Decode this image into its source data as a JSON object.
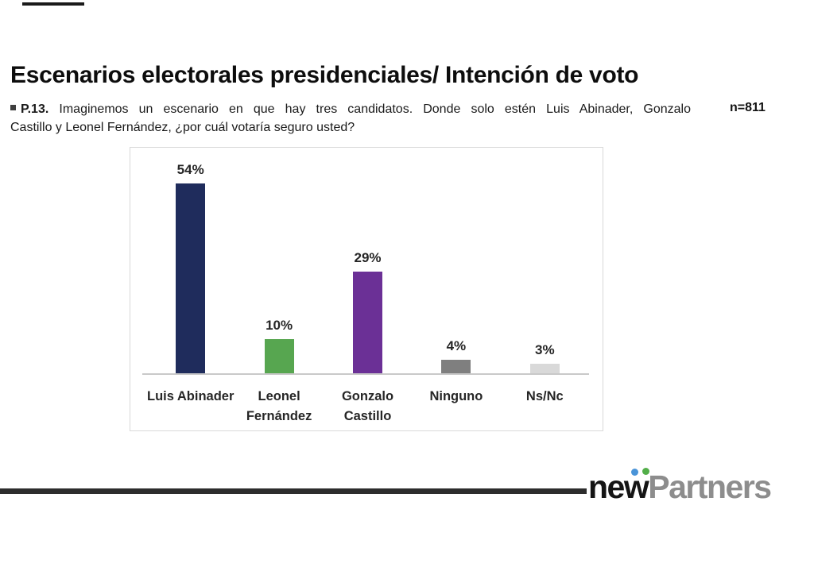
{
  "slide": {
    "title": "Escenarios electorales presidenciales/ Intención de voto",
    "question": {
      "bullet": "",
      "label": "P.13.",
      "line1": "Imaginemos un escenario en que hay tres candidatos. Donde solo estén Luis Abinader, Gonzalo",
      "line2": "Castillo y Leonel Fernández, ¿por cuál votaría seguro usted?",
      "sample": "n=811"
    },
    "footer": {
      "brand_first": "new",
      "brand_second": "Partners"
    }
  },
  "colors": {
    "navy": "#1f2c5c",
    "green": "#57a650",
    "purple": "#6b3096",
    "dark_gray": "#7f7f7f",
    "light_gray": "#d9d9d9",
    "axis": "#c9c9c9",
    "divider": "#2d2d2d",
    "logo_gray": "#8d8d8d",
    "logo_dot_blue": "#4a94d8",
    "logo_dot_green": "#52ae49"
  },
  "chart_data": {
    "type": "bar",
    "categories": [
      "Luis Abinader",
      "Leonel Fernández",
      "Gonzalo Castillo",
      "Ninguno",
      "Ns/Nc"
    ],
    "values": [
      54,
      10,
      29,
      4,
      3
    ],
    "value_labels": [
      "54%",
      "10%",
      "29%",
      "4%",
      "3%"
    ],
    "bar_colors": [
      "#1f2c5c",
      "#57a650",
      "#6b3096",
      "#7f7f7f",
      "#d9d9d9"
    ],
    "title": "",
    "xlabel": "",
    "ylabel": "",
    "ylim": [
      0,
      60
    ],
    "grid": false,
    "legend": false,
    "value_label_position": "above",
    "axis_line": "bottom-only"
  }
}
